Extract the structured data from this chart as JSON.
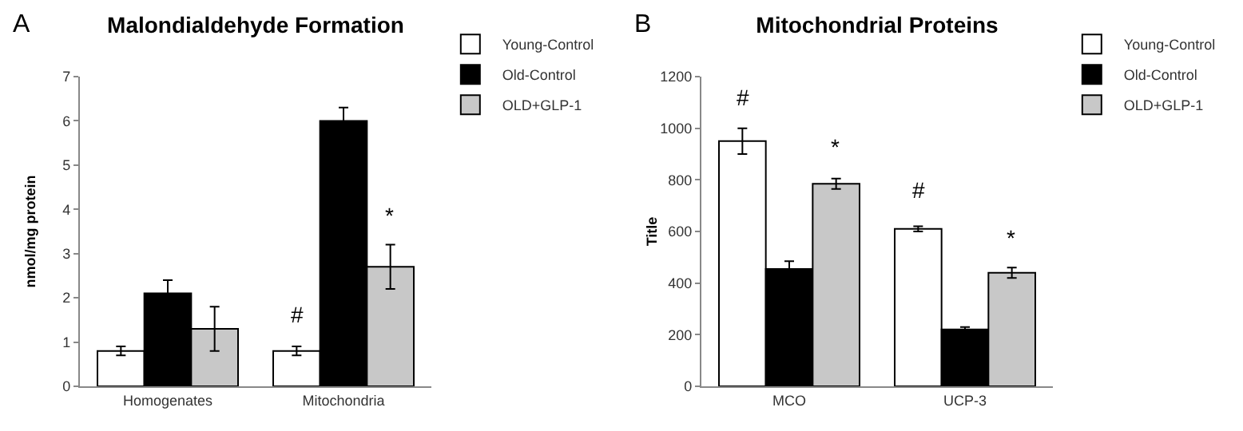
{
  "chart_data": [
    {
      "type": "bar",
      "title": "Malondialdehyde Formation",
      "ylabel": "nmol/mg protein",
      "categories": [
        "Homogenates",
        "Mitochondria"
      ],
      "series": [
        {
          "name": "Young-Control",
          "color": "#ffffff",
          "values": [
            0.8,
            0.8
          ],
          "errors": [
            0.1,
            0.1
          ]
        },
        {
          "name": "Old-Control",
          "color": "#000000",
          "values": [
            2.1,
            6.0
          ],
          "errors": [
            0.3,
            0.3
          ]
        },
        {
          "name": "OLD+GLP-1",
          "color": "#c8c8c8",
          "values": [
            1.3,
            2.7
          ],
          "errors": [
            0.5,
            0.5
          ]
        }
      ],
      "ylim": [
        0,
        7
      ],
      "yticks": [
        0,
        1,
        2,
        3,
        4,
        5,
        6,
        7
      ],
      "grid": false,
      "legend": "top right",
      "annotations": [
        "A",
        "#",
        "*"
      ]
    },
    {
      "type": "bar",
      "title": "Mitochondrial Proteins",
      "ylabel": "Title",
      "categories": [
        "MCO",
        "UCP-3"
      ],
      "series": [
        {
          "name": "Young-Control",
          "color": "#ffffff",
          "values": [
            950,
            610
          ],
          "errors": [
            50,
            10
          ]
        },
        {
          "name": "Old-Control",
          "color": "#000000",
          "values": [
            455,
            220
          ],
          "errors": [
            30,
            10
          ]
        },
        {
          "name": "OLD+GLP-1",
          "color": "#c8c8c8",
          "values": [
            785,
            440
          ],
          "errors": [
            20,
            20
          ]
        }
      ],
      "ylim": [
        0,
        1200
      ],
      "yticks": [
        0,
        200,
        400,
        600,
        800,
        1000,
        1200
      ],
      "grid": false,
      "legend": "top right",
      "annotations": [
        "B",
        "#",
        "*",
        "#",
        "*"
      ]
    }
  ]
}
